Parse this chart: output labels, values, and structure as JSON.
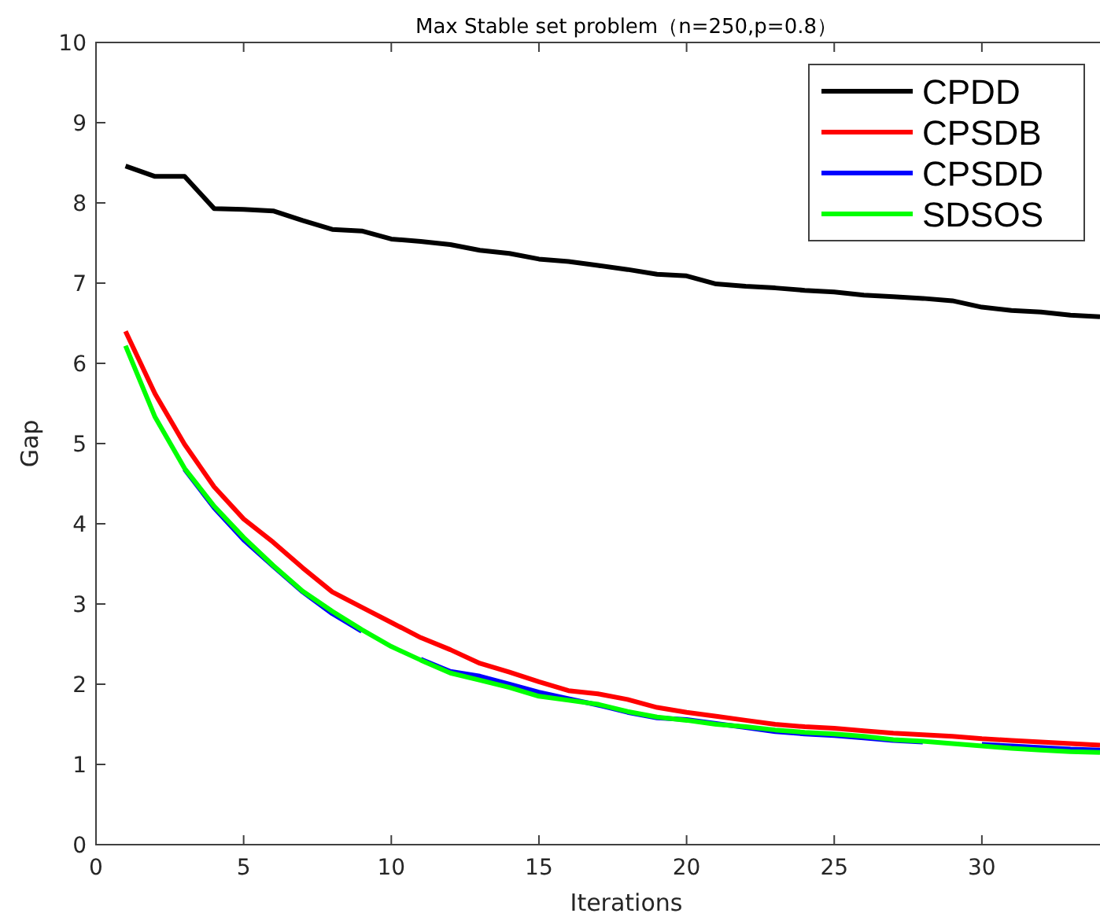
{
  "chart_data": {
    "type": "line",
    "title": "Max Stable set problem（n=250,p=0.8）",
    "xlabel": "Iterations",
    "ylabel": "Gap",
    "x": [
      1,
      2,
      3,
      4,
      5,
      6,
      7,
      8,
      9,
      10,
      11,
      12,
      13,
      14,
      15,
      16,
      17,
      18,
      19,
      20,
      21,
      22,
      23,
      24,
      25,
      26,
      27,
      28,
      29,
      30,
      31,
      32,
      33,
      34
    ],
    "xlim": [
      0,
      34
    ],
    "xticks": [
      0,
      5,
      10,
      15,
      20,
      25,
      30
    ],
    "ylim": [
      0,
      10
    ],
    "yticks": [
      0,
      1,
      2,
      3,
      4,
      5,
      6,
      7,
      8,
      9,
      10
    ],
    "grid": false,
    "legend": "top right",
    "marker": "none",
    "line_style": "solid",
    "series": [
      {
        "name": "CPDD",
        "color": "#000000",
        "values": [
          8.46,
          8.33,
          8.33,
          7.93,
          7.92,
          7.9,
          7.78,
          7.67,
          7.65,
          7.55,
          7.52,
          7.48,
          7.41,
          7.37,
          7.3,
          7.27,
          7.22,
          7.17,
          7.11,
          7.09,
          6.99,
          6.96,
          6.94,
          6.91,
          6.89,
          6.85,
          6.83,
          6.81,
          6.78,
          6.7,
          6.66,
          6.64,
          6.6,
          6.58
        ]
      },
      {
        "name": "CPSDB",
        "color": "#ff0000",
        "values": [
          6.4,
          5.62,
          4.99,
          4.46,
          4.06,
          3.77,
          3.45,
          3.15,
          2.96,
          2.77,
          2.58,
          2.43,
          2.26,
          2.15,
          2.03,
          1.92,
          1.88,
          1.81,
          1.71,
          1.65,
          1.6,
          1.55,
          1.5,
          1.47,
          1.45,
          1.42,
          1.39,
          1.37,
          1.35,
          1.32,
          1.3,
          1.28,
          1.26,
          1.24
        ]
      },
      {
        "name": "CPSDD",
        "color": "#0000ff",
        "values": [
          null,
          null,
          4.68,
          4.2,
          3.8,
          3.47,
          3.15,
          2.88,
          2.66,
          null,
          2.31,
          2.16,
          2.1,
          2.0,
          1.9,
          1.82,
          1.74,
          1.65,
          1.58,
          1.56,
          1.51,
          1.46,
          1.41,
          1.38,
          1.36,
          1.33,
          1.3,
          1.28,
          null,
          1.25,
          1.23,
          1.21,
          1.19,
          1.18
        ]
      },
      {
        "name": "SDSOS",
        "color": "#00ff00",
        "values": [
          6.22,
          5.33,
          4.69,
          4.22,
          3.83,
          3.48,
          3.16,
          2.91,
          2.68,
          2.47,
          2.3,
          2.14,
          2.05,
          1.96,
          1.85,
          1.8,
          1.75,
          1.66,
          1.59,
          1.55,
          1.5,
          1.47,
          1.43,
          1.4,
          1.38,
          1.35,
          1.31,
          1.29,
          1.26,
          1.23,
          1.2,
          1.18,
          1.16,
          1.15
        ]
      }
    ]
  }
}
